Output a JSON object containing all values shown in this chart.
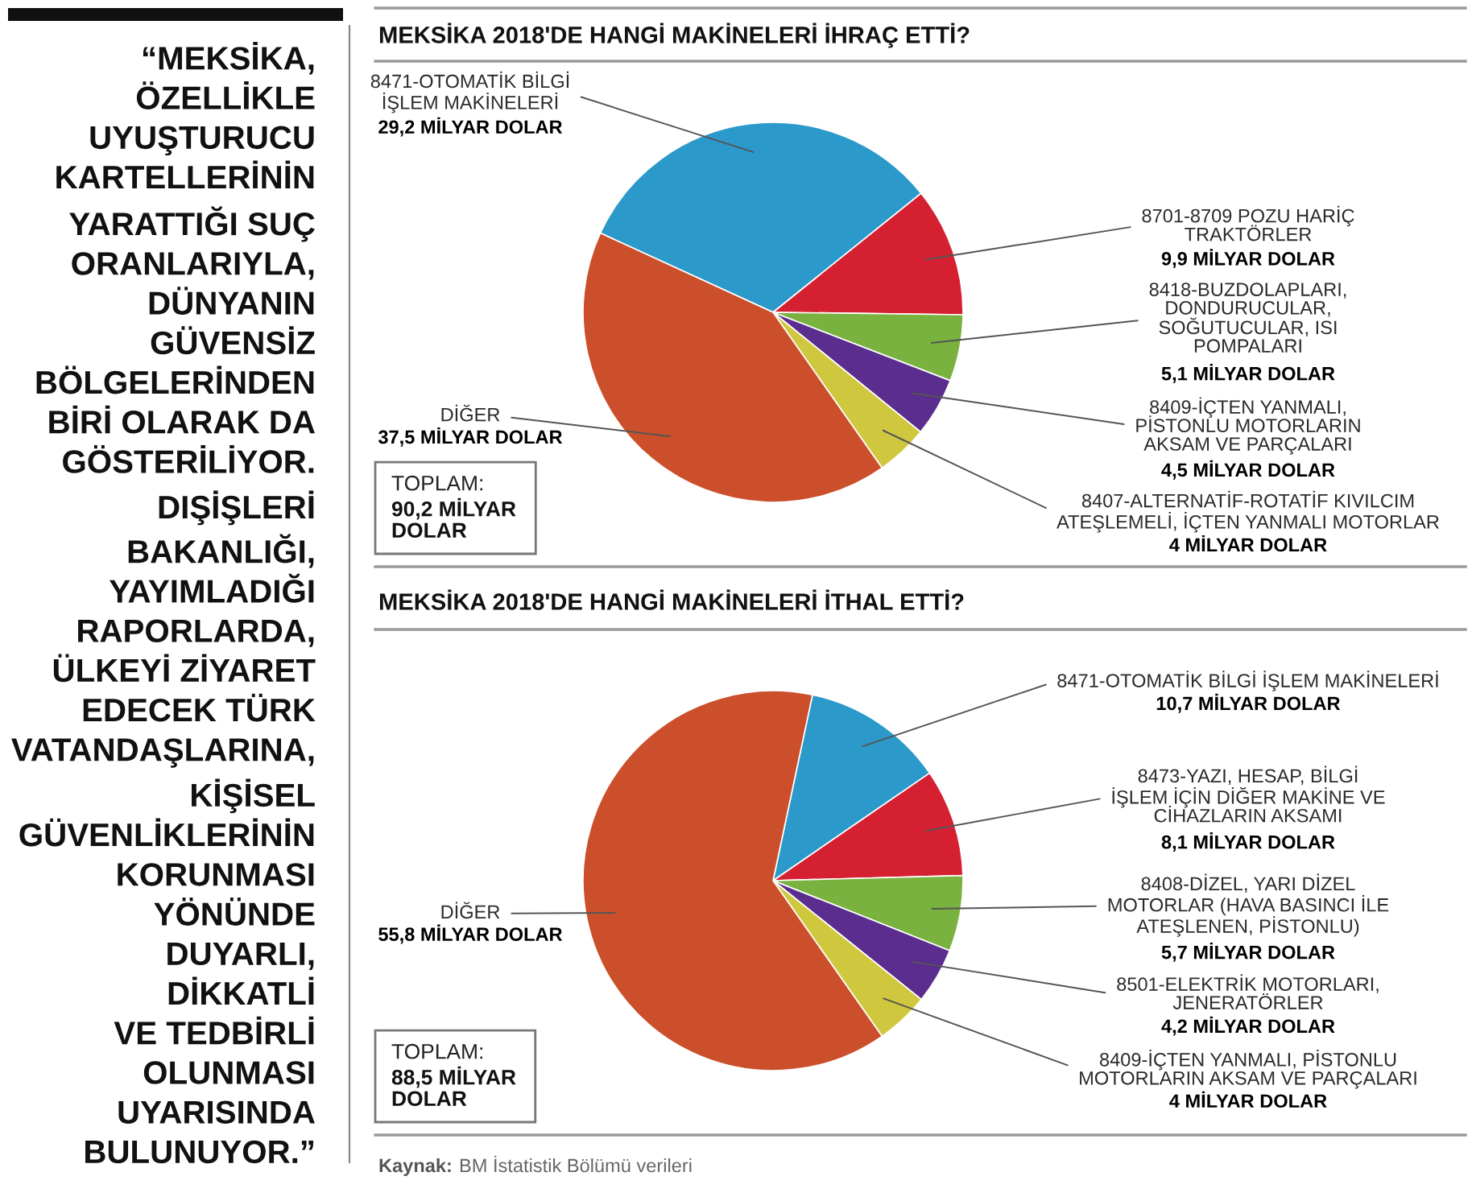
{
  "chart_data": [
    {
      "type": "other",
      "annotations": [
        "“MEKSİKA,\nÖZELLİKLE\nUYUŞTURUCU\nKARTELLERİNİN\nYARATTIĞI SUÇ\nORANLARIYLA,\nDÜNYANIN\nGÜVENSİZ\nBÖLGELERİNDEN\nBİRİ OLARAK DA\nGÖSTERİLİYOR.\nDIŞİŞLERİ\nBAKANLIĞI,\nYAYIMLADIĞI\nRAPORLARDA,\nÜLKEYİ ZİYARET\nEDECEK TÜRK\nVATANDAŞLARINA,\nKİŞİSEL\nGÜVENLİKLERİNİN\nKORUNMASI\nYÖNÜNDE\nDUYARLI,\nDİKKATLİ\nVE TEDBİRLİ\nOLUNMASI\nUYARISINDA\nBULUNUYOR.”"
      ]
    },
    {
      "type": "pie",
      "title": "MEKSİKA 2018'DE HANGİ MAKİNELERİ İHRAÇ ETTİ?",
      "categories": [
        "8471-OTOMATİK BİLGİ\nİŞLEM MAKİNELERİ",
        "8701-8709 POZU HARİÇ\nTRAKTÖRLER",
        "8418-BUZDOLAPLARI,\nDONDURUCULAR,\nSOĞUTUCULAR, ISI\nPOMPALARI",
        "8409-İÇTEN YANMALI,\nPİSTONLU MOTORLARIN\nAKSAM VE PARÇALARI",
        "8407-ALTERNATİF-ROTATİF KIVILCIM\nATEŞLEMELİ, İÇTEN YANMALI MOTORLAR",
        "DİĞER"
      ],
      "values": [
        29.2,
        9.9,
        5.1,
        4.5,
        4,
        37.5
      ],
      "value_labels": [
        "29,2 MİLYAR DOLAR",
        "9,9 MİLYAR DOLAR",
        "5,1 MİLYAR DOLAR",
        "4,5 MİLYAR DOLAR",
        "4 MİLYAR DOLAR",
        "37,5 MİLYAR DOLAR"
      ],
      "colors": [
        "#2b9acb",
        "#d42030",
        "#79b23f",
        "#5b2d8e",
        "#cfc83e",
        "#cb4f2b"
      ],
      "annotations": [
        "TOPLAM:\n90,2 MİLYAR\nDOLAR"
      ]
    },
    {
      "type": "pie",
      "title": "MEKSİKA 2018'DE HANGİ MAKİNELERİ İTHAL ETTİ?",
      "categories": [
        "8471-OTOMATİK BİLGİ İŞLEM MAKİNELERİ",
        "8473-YAZI, HESAP, BİLGİ\nİŞLEM İÇİN DİĞER MAKİNE VE\nCİHAZLARIN AKSAMI",
        "8408-DİZEL, YARI DİZEL\nMOTORLAR (HAVA BASINCI İLE\nATEŞLENEN, PİSTONLU)",
        "8501-ELEKTRİK MOTORLARI,\nJENERATÖRLER",
        "8409-İÇTEN YANMALI, PİSTONLU\nMOTORLARIN AKSAM VE PARÇALARI",
        "DİĞER"
      ],
      "values": [
        10.7,
        8.1,
        5.7,
        4.2,
        4,
        55.8
      ],
      "value_labels": [
        "10,7 MİLYAR DOLAR",
        "8,1 MİLYAR DOLAR",
        "5,7 MİLYAR DOLAR",
        "4,2 MİLYAR DOLAR",
        "4 MİLYAR DOLAR",
        "55,8 MİLYAR DOLAR"
      ],
      "colors": [
        "#2b9acb",
        "#d42030",
        "#79b23f",
        "#5b2d8e",
        "#cfc83e",
        "#cb4f2b"
      ],
      "annotations": [
        "TOPLAM:\n88,5 MİLYAR\nDOLAR",
        "Kaynak: BM İstatistik Bölümü verileri"
      ]
    }
  ]
}
